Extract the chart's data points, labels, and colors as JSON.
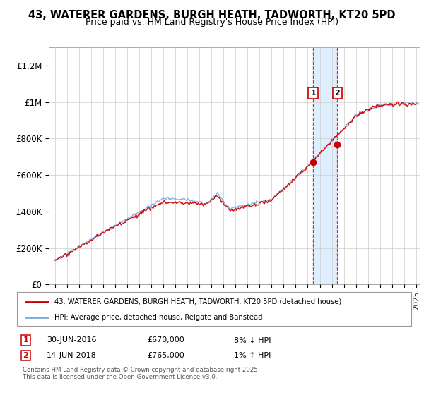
{
  "title": "43, WATERER GARDENS, BURGH HEATH, TADWORTH, KT20 5PD",
  "subtitle": "Price paid vs. HM Land Registry's House Price Index (HPI)",
  "ylabel_ticks": [
    "£0",
    "£200K",
    "£400K",
    "£600K",
    "£800K",
    "£1M",
    "£1.2M"
  ],
  "ytick_vals": [
    0,
    200000,
    400000,
    600000,
    800000,
    1000000,
    1200000
  ],
  "ylim": [
    0,
    1300000
  ],
  "xlim_start": 1994.5,
  "xlim_end": 2025.3,
  "sale1_x": 2016.45,
  "sale1_y": 670000,
  "sale1_label": "30-JUN-2016",
  "sale1_price": "£670,000",
  "sale1_hpi": "8% ↓ HPI",
  "sale2_x": 2018.45,
  "sale2_y": 765000,
  "sale2_label": "14-JUN-2018",
  "sale2_price": "£765,000",
  "sale2_hpi": "1% ↑ HPI",
  "legend_line1": "43, WATERER GARDENS, BURGH HEATH, TADWORTH, KT20 5PD (detached house)",
  "legend_line2": "HPI: Average price, detached house, Reigate and Banstead",
  "footer": "Contains HM Land Registry data © Crown copyright and database right 2025.\nThis data is licensed under the Open Government Licence v3.0.",
  "red_color": "#cc0000",
  "blue_color": "#7aacdb",
  "shade_color": "#ddeeff",
  "background_color": "#ffffff",
  "plot_bg_color": "#ffffff",
  "grid_color": "#cccccc",
  "vline_color": "#cc0000",
  "title_fontsize": 10.5,
  "subtitle_fontsize": 9
}
